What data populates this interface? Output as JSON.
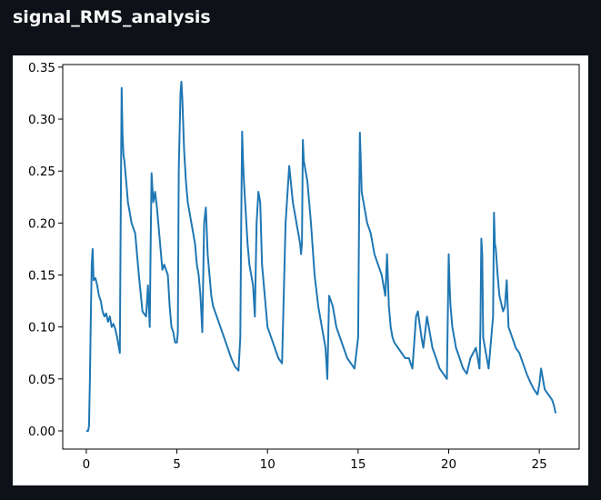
{
  "page": {
    "title": "signal_RMS_analysis"
  },
  "colors": {
    "background": "#0e1117",
    "panel": "#ffffff",
    "line": "#1f77b4",
    "title": "#fafafa"
  },
  "chart_data": {
    "type": "line",
    "title": "",
    "xlabel": "",
    "ylabel": "",
    "xlim": [
      -1.3,
      27.2
    ],
    "ylim": [
      -0.0175,
      0.3525
    ],
    "xticks": [
      0,
      5,
      10,
      15,
      20,
      25
    ],
    "yticks": [
      0.0,
      0.05,
      0.1,
      0.15,
      0.2,
      0.25,
      0.3,
      0.35
    ],
    "xtick_labels": [
      "0",
      "5",
      "10",
      "15",
      "20",
      "25"
    ],
    "ytick_labels": [
      "0.00",
      "0.05",
      "0.10",
      "0.15",
      "0.20",
      "0.25",
      "0.30",
      "0.35"
    ],
    "grid": false,
    "series": [
      {
        "color": "#1f77b4",
        "x": [
          0,
          0.1,
          0.15,
          0.2,
          0.25,
          0.3,
          0.35,
          0.4,
          0.5,
          0.6,
          0.7,
          0.8,
          0.9,
          1.0,
          1.1,
          1.2,
          1.3,
          1.4,
          1.5,
          1.6,
          1.7,
          1.8,
          1.85,
          1.9,
          1.95,
          2.0,
          2.05,
          2.1,
          2.2,
          2.3,
          2.5,
          2.7,
          2.9,
          3.1,
          3.3,
          3.4,
          3.5,
          3.55,
          3.6,
          3.7,
          3.8,
          3.9,
          4.0,
          4.2,
          4.3,
          4.5,
          4.6,
          4.7,
          4.8,
          4.9,
          5.0,
          5.05,
          5.1,
          5.2,
          5.25,
          5.3,
          5.4,
          5.5,
          5.6,
          5.8,
          6.0,
          6.1,
          6.2,
          6.3,
          6.4,
          6.5,
          6.6,
          6.7,
          6.8,
          6.9,
          7.0,
          7.2,
          7.4,
          7.6,
          7.8,
          8.0,
          8.2,
          8.4,
          8.5,
          8.55,
          8.6,
          8.65,
          8.7,
          8.8,
          8.9,
          9.0,
          9.2,
          9.3,
          9.4,
          9.5,
          9.6,
          9.7,
          9.8,
          9.9,
          10.0,
          10.2,
          10.4,
          10.6,
          10.8,
          11.0,
          11.2,
          11.4,
          11.6,
          11.8,
          11.85,
          11.9,
          11.95,
          12.0,
          12.1,
          12.2,
          12.4,
          12.6,
          12.8,
          13.0,
          13.2,
          13.3,
          13.4,
          13.6,
          13.8,
          14.0,
          14.2,
          14.4,
          14.6,
          14.8,
          15.0,
          15.05,
          15.1,
          15.15,
          15.2,
          15.3,
          15.5,
          15.7,
          15.9,
          16.1,
          16.3,
          16.5,
          16.6,
          16.7,
          16.8,
          16.9,
          17.0,
          17.2,
          17.4,
          17.6,
          17.8,
          18.0,
          18.2,
          18.3,
          18.5,
          18.6,
          18.8,
          18.9,
          19.1,
          19.3,
          19.5,
          19.7,
          19.9,
          19.95,
          20.0,
          20.05,
          20.1,
          20.2,
          20.4,
          20.6,
          20.8,
          21.0,
          21.2,
          21.5,
          21.7,
          21.75,
          21.8,
          21.85,
          21.9,
          22.0,
          22.2,
          22.45,
          22.5,
          22.55,
          22.6,
          22.7,
          22.8,
          23.0,
          23.1,
          23.2,
          23.3,
          23.5,
          23.7,
          23.9,
          24.1,
          24.3,
          24.5,
          24.7,
          24.9,
          25.0,
          25.1,
          25.2,
          25.3,
          25.5,
          25.7,
          25.8,
          25.9
        ],
        "y": [
          0,
          0,
          0.005,
          0.05,
          0.11,
          0.16,
          0.175,
          0.145,
          0.147,
          0.14,
          0.13,
          0.125,
          0.115,
          0.11,
          0.113,
          0.105,
          0.11,
          0.1,
          0.103,
          0.098,
          0.09,
          0.08,
          0.075,
          0.21,
          0.33,
          0.285,
          0.265,
          0.26,
          0.24,
          0.22,
          0.2,
          0.19,
          0.15,
          0.115,
          0.11,
          0.14,
          0.1,
          0.18,
          0.248,
          0.22,
          0.23,
          0.215,
          0.195,
          0.155,
          0.16,
          0.15,
          0.12,
          0.1,
          0.095,
          0.085,
          0.085,
          0.095,
          0.25,
          0.325,
          0.336,
          0.32,
          0.27,
          0.24,
          0.22,
          0.2,
          0.18,
          0.16,
          0.15,
          0.13,
          0.095,
          0.2,
          0.215,
          0.17,
          0.15,
          0.13,
          0.12,
          0.11,
          0.1,
          0.09,
          0.08,
          0.07,
          0.062,
          0.058,
          0.09,
          0.2,
          0.288,
          0.26,
          0.24,
          0.21,
          0.18,
          0.16,
          0.14,
          0.11,
          0.2,
          0.23,
          0.22,
          0.16,
          0.14,
          0.12,
          0.1,
          0.09,
          0.08,
          0.07,
          0.065,
          0.2,
          0.255,
          0.22,
          0.2,
          0.18,
          0.17,
          0.18,
          0.28,
          0.26,
          0.25,
          0.24,
          0.2,
          0.15,
          0.12,
          0.1,
          0.08,
          0.05,
          0.13,
          0.12,
          0.1,
          0.09,
          0.08,
          0.07,
          0.065,
          0.06,
          0.09,
          0.2,
          0.287,
          0.26,
          0.23,
          0.22,
          0.2,
          0.19,
          0.17,
          0.16,
          0.15,
          0.13,
          0.17,
          0.12,
          0.1,
          0.09,
          0.085,
          0.08,
          0.075,
          0.07,
          0.07,
          0.06,
          0.11,
          0.115,
          0.09,
          0.08,
          0.11,
          0.1,
          0.08,
          0.07,
          0.06,
          0.055,
          0.05,
          0.11,
          0.17,
          0.14,
          0.12,
          0.1,
          0.08,
          0.07,
          0.06,
          0.055,
          0.07,
          0.08,
          0.06,
          0.1,
          0.185,
          0.17,
          0.09,
          0.08,
          0.06,
          0.11,
          0.21,
          0.18,
          0.175,
          0.15,
          0.13,
          0.115,
          0.12,
          0.145,
          0.1,
          0.09,
          0.08,
          0.075,
          0.065,
          0.055,
          0.047,
          0.04,
          0.035,
          0.045,
          0.06,
          0.05,
          0.04,
          0.035,
          0.03,
          0.025,
          0.017
        ]
      }
    ]
  }
}
